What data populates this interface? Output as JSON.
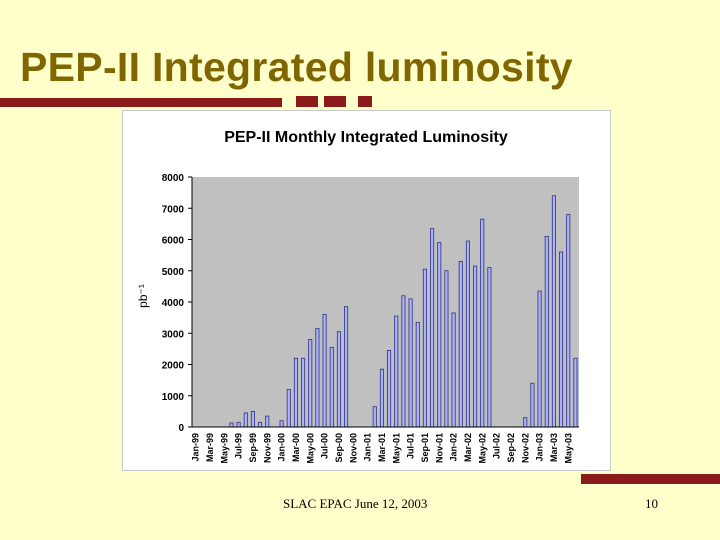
{
  "slide": {
    "title": "PEP-II Integrated luminosity",
    "footer_left": "SLAC EPAC June 12, 2003",
    "page_number": "10",
    "colors": {
      "background": "#ffffcc",
      "title": "#806600",
      "accent": "#8b1a1a"
    }
  },
  "chart_data": {
    "type": "bar",
    "title": "PEP-II Monthly Integrated Luminosity",
    "ylabel": "pb⁻¹",
    "xlabel": "",
    "ylim": [
      0,
      8000
    ],
    "yticks": [
      0,
      1000,
      2000,
      3000,
      4000,
      5000,
      6000,
      7000,
      8000
    ],
    "grid": false,
    "plot_background": "#c0c0c0",
    "bar_fill": "#aab4f0",
    "bar_stroke": "#2e2e8a",
    "categories": [
      "Jan-99",
      "Feb-99",
      "Mar-99",
      "Apr-99",
      "May-99",
      "Jun-99",
      "Jul-99",
      "Aug-99",
      "Sep-99",
      "Oct-99",
      "Nov-99",
      "Dec-99",
      "Jan-00",
      "Feb-00",
      "Mar-00",
      "Apr-00",
      "May-00",
      "Jun-00",
      "Jul-00",
      "Aug-00",
      "Sep-00",
      "Oct-00",
      "Nov-00",
      "Dec-00",
      "Jan-01",
      "Feb-01",
      "Mar-01",
      "Apr-01",
      "May-01",
      "Jun-01",
      "Jul-01",
      "Aug-01",
      "Sep-01",
      "Oct-01",
      "Nov-01",
      "Dec-01",
      "Jan-02",
      "Feb-02",
      "Mar-02",
      "Apr-02",
      "May-02",
      "Jun-02",
      "Jul-02",
      "Aug-02",
      "Sep-02",
      "Oct-02",
      "Nov-02",
      "Dec-02",
      "Jan-03",
      "Feb-03",
      "Mar-03",
      "Apr-03",
      "May-03",
      "Jun-03"
    ],
    "values": [
      0,
      0,
      0,
      0,
      0,
      130,
      150,
      450,
      500,
      150,
      350,
      0,
      200,
      1200,
      2200,
      2200,
      2800,
      3150,
      3600,
      2550,
      3050,
      3850,
      0,
      0,
      0,
      650,
      1850,
      2450,
      3550,
      4200,
      4100,
      3350,
      5050,
      6350,
      5900,
      5000,
      3650,
      5300,
      5950,
      5150,
      6650,
      5100,
      0,
      0,
      0,
      0,
      300,
      1400,
      4350,
      6100,
      7400,
      5600,
      6800,
      2200
    ],
    "tick_labels": [
      "Jan-99",
      "Mar-99",
      "May-99",
      "Jul-99",
      "Sep-99",
      "Nov-99",
      "Jan-00",
      "Mar-00",
      "May-00",
      "Jul-00",
      "Sep-00",
      "Nov-00",
      "Jan-01",
      "Mar-01",
      "May-01",
      "Jul-01",
      "Sep-01",
      "Nov-01",
      "Jan-02",
      "Mar-02",
      "May-02",
      "Jul-02",
      "Sep-02",
      "Nov-02",
      "Jan-03",
      "Mar-03",
      "May-03"
    ]
  }
}
